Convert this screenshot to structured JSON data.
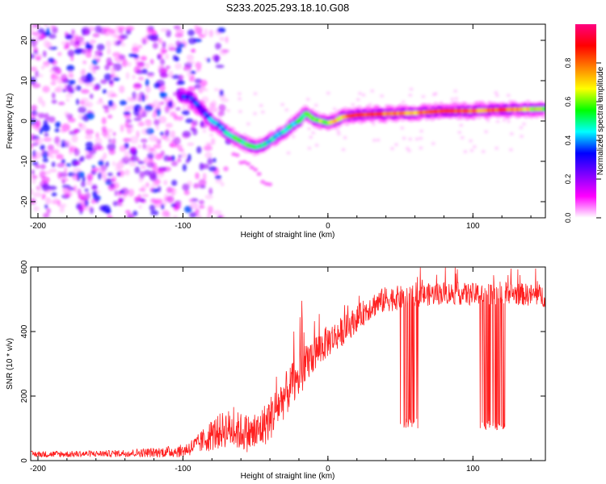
{
  "title": "S233.2025.293.18.10.G08",
  "chart_data": [
    {
      "type": "heatmap",
      "xlabel": "Height of straight line (km)",
      "ylabel": "Frequency (Hz)",
      "xlim": [
        -205,
        150
      ],
      "ylim": [
        -24,
        24
      ],
      "xticks": [
        -200,
        -100,
        0,
        100
      ],
      "yticks": [
        -20,
        -10,
        0,
        10,
        20
      ],
      "colorbar": {
        "label": "Normalized spectral amplitude",
        "range": [
          0,
          1
        ],
        "ticks": [
          "0.0",
          "0.2",
          "0.4",
          "0.6",
          "0.8"
        ],
        "colors": [
          "#ffffff",
          "#ff00ff",
          "#8000ff",
          "#0000ff",
          "#00ffff",
          "#00ff00",
          "#ffff00",
          "#ff8000",
          "#ff0000",
          "#ff0080"
        ]
      },
      "ridge": {
        "x": [
          -100,
          -95,
          -90,
          -85,
          -80,
          -75,
          -70,
          -65,
          -60,
          -55,
          -50,
          -45,
          -40,
          -35,
          -30,
          -25,
          -20,
          -15,
          -10,
          -5,
          0,
          5,
          10,
          20,
          40,
          60,
          80,
          100,
          120,
          150
        ],
        "y": [
          6,
          6,
          4,
          2,
          0,
          -1,
          -3,
          -4,
          -5,
          -6,
          -6.5,
          -6,
          -5,
          -3.5,
          -2.5,
          -1,
          0,
          2,
          0.5,
          0,
          -0.5,
          0,
          1,
          1.5,
          1.8,
          2,
          2.5,
          2.5,
          2.8,
          3
        ],
        "amplitude": [
          0.35,
          0.3,
          0.3,
          0.32,
          0.38,
          0.4,
          0.45,
          0.5,
          0.55,
          0.55,
          0.5,
          0.5,
          0.45,
          0.4,
          0.45,
          0.45,
          0.5,
          0.5,
          0.55,
          0.6,
          0.6,
          0.7,
          0.7,
          0.85,
          0.8,
          0.75,
          0.85,
          0.75,
          0.85,
          0.6
        ]
      },
      "noise_region": [
        -205,
        -90
      ]
    },
    {
      "type": "line",
      "xlabel": "Height of straight line (km)",
      "ylabel": "SNR (10 * v/v)",
      "xlim": [
        -205,
        150
      ],
      "ylim": [
        0,
        600
      ],
      "xticks": [
        -200,
        -100,
        0,
        100
      ],
      "yticks": [
        0,
        200,
        400,
        600
      ],
      "series": [
        {
          "name": "SNR",
          "color": "#ff2020",
          "x": [
            -205,
            -180,
            -150,
            -120,
            -100,
            -90,
            -80,
            -70,
            -60,
            -50,
            -40,
            -30,
            -20,
            -10,
            0,
            10,
            20,
            30,
            40,
            60,
            80,
            100,
            120,
            150
          ],
          "y": [
            20,
            20,
            22,
            25,
            30,
            50,
            80,
            100,
            90,
            80,
            130,
            200,
            260,
            330,
            370,
            400,
            440,
            480,
            500,
            510,
            520,
            515,
            520,
            510
          ],
          "noise": [
            10,
            10,
            10,
            15,
            20,
            30,
            50,
            60,
            60,
            60,
            70,
            70,
            70,
            60,
            50,
            45,
            40,
            40,
            40,
            35,
            35,
            35,
            35,
            35
          ],
          "dropouts": [
            [
              50,
              62,
              100
            ],
            [
              105,
              122,
              95
            ]
          ]
        }
      ]
    }
  ]
}
